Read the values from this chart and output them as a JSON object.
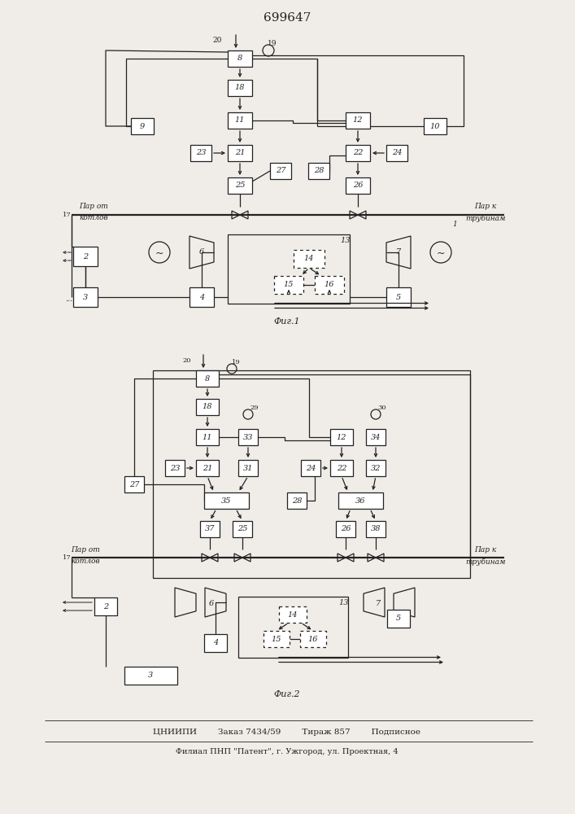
{
  "title": "699647",
  "fig1_label": "Фиг.1",
  "fig2_label": "Фиг.2",
  "footer_line1": "ЦНИИПИ        Заказ 7434/59        Тираж 857        Подписное",
  "footer_line2": "Филиал ПНП \"Патент\", г. Ужгород, ул. Проектная, 4",
  "bg_color": "#f0ede8",
  "line_color": "#222222",
  "box_color": "#ffffff",
  "text_color": "#222222"
}
